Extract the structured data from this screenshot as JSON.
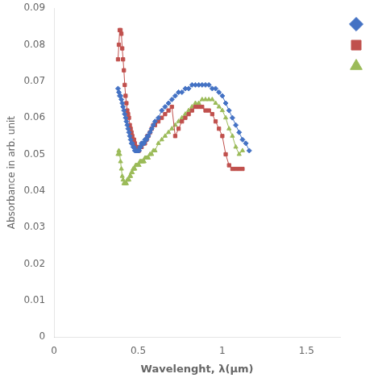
{
  "chart_data": {
    "type": "line",
    "xlabel": "Wavelenght, λ(μm)",
    "ylabel": "Absorbance in arb. unit",
    "xlim": [
      0,
      1.7
    ],
    "ylim": [
      0,
      0.09
    ],
    "xticks": [
      0,
      0.5,
      1,
      1.5
    ],
    "yticks": [
      0,
      0.01,
      0.02,
      0.03,
      0.04,
      0.05,
      0.06,
      0.07,
      0.08,
      0.09
    ],
    "grid": false,
    "legend": "upper right",
    "series": [
      {
        "color": "#4472C4",
        "marker": "diamond",
        "line_style": "solid",
        "x": [
          0.38,
          0.385,
          0.39,
          0.395,
          0.4,
          0.405,
          0.41,
          0.415,
          0.42,
          0.425,
          0.43,
          0.435,
          0.44,
          0.445,
          0.45,
          0.455,
          0.46,
          0.465,
          0.47,
          0.475,
          0.48,
          0.485,
          0.49,
          0.495,
          0.5,
          0.505,
          0.51,
          0.515,
          0.52,
          0.525,
          0.53,
          0.535,
          0.54,
          0.545,
          0.55,
          0.555,
          0.56,
          0.57,
          0.58,
          0.59,
          0.6,
          0.62,
          0.64,
          0.66,
          0.68,
          0.7,
          0.72,
          0.74,
          0.76,
          0.78,
          0.8,
          0.82,
          0.84,
          0.86,
          0.88,
          0.9,
          0.92,
          0.94,
          0.96,
          0.98,
          1.0,
          1.02,
          1.04,
          1.06,
          1.08,
          1.1,
          1.12,
          1.14,
          1.16
        ],
        "values": [
          0.068,
          0.067,
          0.066,
          0.066,
          0.065,
          0.064,
          0.063,
          0.062,
          0.061,
          0.06,
          0.059,
          0.058,
          0.057,
          0.056,
          0.055,
          0.054,
          0.053,
          0.053,
          0.052,
          0.052,
          0.051,
          0.051,
          0.051,
          0.051,
          0.051,
          0.051,
          0.052,
          0.052,
          0.053,
          0.053,
          0.053,
          0.053,
          0.054,
          0.054,
          0.054,
          0.055,
          0.055,
          0.056,
          0.057,
          0.058,
          0.059,
          0.06,
          0.062,
          0.063,
          0.064,
          0.065,
          0.066,
          0.067,
          0.067,
          0.068,
          0.068,
          0.069,
          0.069,
          0.069,
          0.069,
          0.069,
          0.069,
          0.068,
          0.068,
          0.067,
          0.066,
          0.064,
          0.062,
          0.06,
          0.058,
          0.056,
          0.054,
          0.053,
          0.051
        ]
      },
      {
        "color": "#C0504D",
        "marker": "square",
        "line_style": "solid",
        "x": [
          0.38,
          0.385,
          0.39,
          0.395,
          0.4,
          0.405,
          0.41,
          0.415,
          0.42,
          0.425,
          0.43,
          0.435,
          0.44,
          0.445,
          0.45,
          0.455,
          0.46,
          0.465,
          0.47,
          0.475,
          0.48,
          0.485,
          0.49,
          0.495,
          0.5,
          0.505,
          0.51,
          0.515,
          0.52,
          0.525,
          0.53,
          0.535,
          0.54,
          0.545,
          0.55,
          0.555,
          0.56,
          0.57,
          0.58,
          0.59,
          0.6,
          0.62,
          0.64,
          0.66,
          0.68,
          0.7,
          0.72,
          0.74,
          0.76,
          0.78,
          0.8,
          0.82,
          0.84,
          0.86,
          0.88,
          0.9,
          0.92,
          0.94,
          0.96,
          0.98,
          1.0,
          1.02,
          1.04,
          1.06,
          1.08,
          1.1,
          1.12
        ],
        "values": [
          0.076,
          0.08,
          0.084,
          0.084,
          0.083,
          0.079,
          0.076,
          0.073,
          0.069,
          0.066,
          0.064,
          0.062,
          0.061,
          0.06,
          0.058,
          0.057,
          0.056,
          0.055,
          0.054,
          0.054,
          0.053,
          0.052,
          0.052,
          0.051,
          0.051,
          0.051,
          0.052,
          0.052,
          0.052,
          0.053,
          0.053,
          0.053,
          0.053,
          0.054,
          0.054,
          0.055,
          0.055,
          0.056,
          0.057,
          0.058,
          0.058,
          0.059,
          0.06,
          0.061,
          0.062,
          0.063,
          0.055,
          0.057,
          0.059,
          0.06,
          0.061,
          0.062,
          0.063,
          0.063,
          0.063,
          0.062,
          0.062,
          0.061,
          0.059,
          0.057,
          0.055,
          0.05,
          0.047,
          0.046,
          0.046,
          0.046,
          0.046
        ]
      },
      {
        "color": "#9BBB59",
        "marker": "triangle",
        "line_style": "solid",
        "x": [
          0.38,
          0.385,
          0.39,
          0.395,
          0.4,
          0.405,
          0.41,
          0.415,
          0.42,
          0.425,
          0.43,
          0.435,
          0.44,
          0.445,
          0.45,
          0.455,
          0.46,
          0.465,
          0.47,
          0.475,
          0.48,
          0.485,
          0.49,
          0.495,
          0.5,
          0.505,
          0.51,
          0.515,
          0.52,
          0.525,
          0.53,
          0.535,
          0.54,
          0.545,
          0.55,
          0.555,
          0.56,
          0.57,
          0.58,
          0.59,
          0.6,
          0.62,
          0.64,
          0.66,
          0.68,
          0.7,
          0.72,
          0.74,
          0.76,
          0.78,
          0.8,
          0.82,
          0.84,
          0.86,
          0.88,
          0.9,
          0.92,
          0.94,
          0.96,
          0.98,
          1.0,
          1.02,
          1.04,
          1.06,
          1.08,
          1.1,
          1.12
        ],
        "values": [
          0.05,
          0.051,
          0.05,
          0.048,
          0.046,
          0.044,
          0.043,
          0.042,
          0.042,
          0.042,
          0.042,
          0.043,
          0.043,
          0.043,
          0.044,
          0.044,
          0.045,
          0.045,
          0.046,
          0.046,
          0.046,
          0.047,
          0.047,
          0.047,
          0.047,
          0.047,
          0.048,
          0.048,
          0.048,
          0.048,
          0.048,
          0.048,
          0.049,
          0.049,
          0.049,
          0.049,
          0.049,
          0.05,
          0.05,
          0.051,
          0.051,
          0.053,
          0.054,
          0.055,
          0.056,
          0.057,
          0.058,
          0.059,
          0.06,
          0.061,
          0.062,
          0.063,
          0.064,
          0.064,
          0.065,
          0.065,
          0.065,
          0.065,
          0.064,
          0.063,
          0.062,
          0.06,
          0.057,
          0.055,
          0.052,
          0.05,
          0.051
        ]
      }
    ]
  }
}
